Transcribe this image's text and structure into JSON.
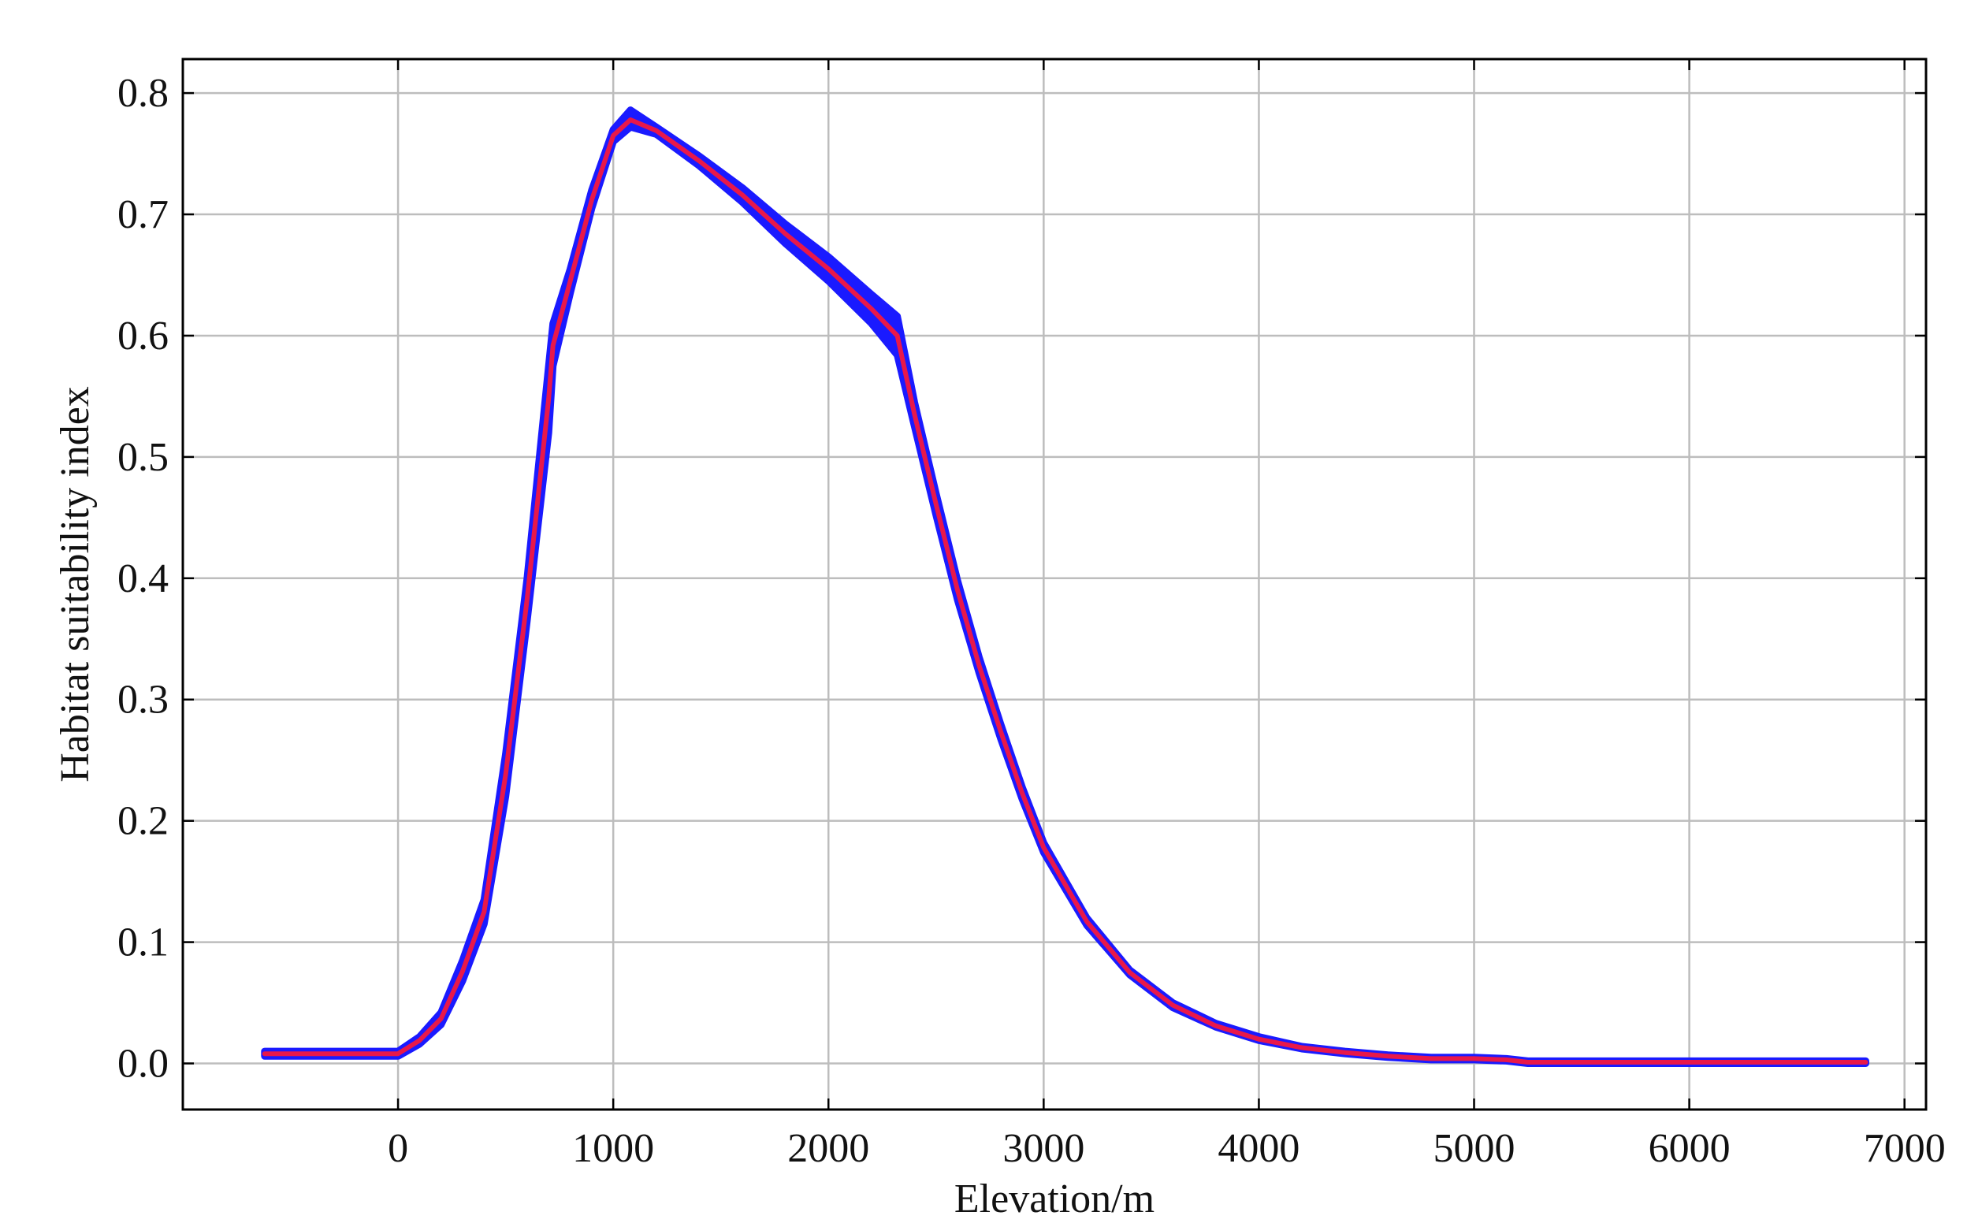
{
  "chart_data": {
    "type": "line",
    "title": "",
    "xlabel": "Elevation/m",
    "ylabel": "Habitat suitability index",
    "xlim": [
      -1000,
      7100
    ],
    "ylim": [
      -0.038,
      0.828
    ],
    "grid": true,
    "x_ticks": [
      0,
      1000,
      2000,
      3000,
      4000,
      5000,
      6000,
      7000
    ],
    "x_tick_labels": [
      "0",
      "1000",
      "2000",
      "3000",
      "4000",
      "5000",
      "6000",
      "7000"
    ],
    "y_ticks": [
      0.0,
      0.1,
      0.2,
      0.3,
      0.4,
      0.5,
      0.6,
      0.7,
      0.8
    ],
    "y_tick_labels": [
      "0.0",
      "0.1",
      "0.2",
      "0.3",
      "0.4",
      "0.5",
      "0.6",
      "0.7",
      "0.8"
    ],
    "colors": {
      "band": "#1a1aff",
      "mean_line": "#e8184a",
      "grid": "#bdbdbd",
      "frame": "#000000"
    },
    "series": [
      {
        "style": "band",
        "x": [
          -620,
          0,
          100,
          200,
          300,
          400,
          500,
          600,
          700,
          720,
          800,
          900,
          1000,
          1080,
          1200,
          1400,
          1600,
          1800,
          2000,
          2200,
          2320,
          2400,
          2500,
          2600,
          2700,
          2800,
          2900,
          3000,
          3200,
          3400,
          3600,
          3800,
          4000,
          4200,
          4400,
          4600,
          4800,
          5000,
          5150,
          5250,
          5500,
          6000,
          6500,
          6820
        ],
        "upper": [
          0.01,
          0.01,
          0.022,
          0.042,
          0.085,
          0.135,
          0.255,
          0.4,
          0.575,
          0.61,
          0.655,
          0.72,
          0.77,
          0.786,
          0.772,
          0.748,
          0.722,
          0.692,
          0.665,
          0.634,
          0.616,
          0.545,
          0.47,
          0.398,
          0.335,
          0.28,
          0.228,
          0.182,
          0.12,
          0.077,
          0.05,
          0.033,
          0.022,
          0.014,
          0.01,
          0.007,
          0.005,
          0.005,
          0.004,
          0.002,
          0.002,
          0.002,
          0.002,
          0.002
        ],
        "lower": [
          0.006,
          0.006,
          0.016,
          0.032,
          0.068,
          0.115,
          0.22,
          0.365,
          0.52,
          0.575,
          0.635,
          0.705,
          0.76,
          0.772,
          0.766,
          0.74,
          0.71,
          0.676,
          0.645,
          0.61,
          0.584,
          0.525,
          0.452,
          0.382,
          0.322,
          0.268,
          0.218,
          0.174,
          0.114,
          0.073,
          0.046,
          0.03,
          0.019,
          0.012,
          0.008,
          0.005,
          0.003,
          0.003,
          0.002,
          0.0,
          0.0,
          0.0,
          0.0,
          0.0
        ]
      },
      {
        "style": "mean",
        "x": [
          -620,
          0,
          100,
          200,
          300,
          400,
          500,
          600,
          700,
          720,
          800,
          900,
          1000,
          1080,
          1200,
          1400,
          1600,
          1800,
          2000,
          2200,
          2320,
          2400,
          2500,
          2600,
          2700,
          2800,
          2900,
          3000,
          3200,
          3400,
          3600,
          3800,
          4000,
          4200,
          4400,
          4600,
          4800,
          5000,
          5150,
          5250,
          5500,
          6000,
          6500,
          6820
        ],
        "values": [
          0.008,
          0.008,
          0.019,
          0.037,
          0.076,
          0.125,
          0.238,
          0.383,
          0.548,
          0.592,
          0.645,
          0.712,
          0.765,
          0.778,
          0.769,
          0.744,
          0.716,
          0.684,
          0.655,
          0.622,
          0.6,
          0.535,
          0.461,
          0.39,
          0.328,
          0.274,
          0.223,
          0.178,
          0.117,
          0.075,
          0.048,
          0.031,
          0.02,
          0.013,
          0.009,
          0.006,
          0.004,
          0.004,
          0.003,
          0.001,
          0.001,
          0.001,
          0.001,
          0.001
        ]
      }
    ]
  }
}
